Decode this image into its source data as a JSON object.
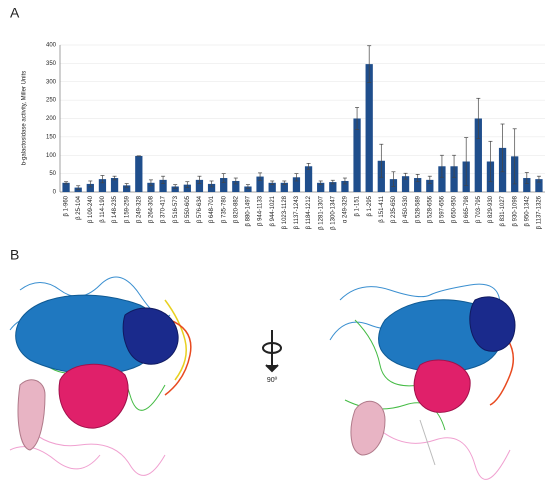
{
  "panel_a": {
    "label": "A"
  },
  "chart_data": {
    "type": "bar",
    "ylabel": "b-galactosidase activity, Miller Units",
    "categories": [
      "β 1-960",
      "β 25-104",
      "β 109-240",
      "β 114-190",
      "β 148-235",
      "β 159-259",
      "β 249-328",
      "β 264-308",
      "β 370-417",
      "β 516-573",
      "β 550-605",
      "β 576-634",
      "β 648-701",
      "β 735-780",
      "β 820-882",
      "β 880-1497",
      "β 944-1133",
      "β 944-1021",
      "β 1023-1128",
      "β 1137-1243",
      "β 1184-1212",
      "β 1281-1307",
      "β 1300-1347",
      "α 249-329",
      "β 1-151",
      "β 1-295",
      "β 151-411",
      "β 235-650",
      "β 450-530",
      "β 528-589",
      "β 528-656",
      "β 597-656",
      "β 650-950",
      "β 665-798",
      "β 703-795",
      "β 829-930",
      "β 831-1027",
      "β 930-1098",
      "β 950-1342",
      "β 1137-1326"
    ],
    "values": [
      25,
      12,
      22,
      35,
      38,
      18,
      98,
      25,
      33,
      15,
      20,
      33,
      22,
      38,
      30,
      15,
      42,
      25,
      25,
      40,
      70,
      25,
      27,
      30,
      200,
      348,
      85,
      35,
      43,
      38,
      33,
      70,
      70,
      83,
      200,
      83,
      120,
      97,
      38,
      35
    ],
    "errors": [
      3,
      5,
      8,
      10,
      5,
      5,
      0,
      8,
      10,
      5,
      8,
      10,
      8,
      12,
      8,
      5,
      10,
      5,
      5,
      10,
      8,
      5,
      5,
      8,
      30,
      50,
      45,
      20,
      8,
      10,
      10,
      30,
      30,
      65,
      55,
      55,
      65,
      75,
      15,
      8
    ],
    "color": "#1f4e8c",
    "ylim": [
      0,
      400
    ],
    "yticks": [
      0,
      50,
      100,
      150,
      200,
      250,
      300,
      350,
      400
    ],
    "grid": true
  },
  "panel_b": {
    "label": "B",
    "rotation_label": "90º"
  }
}
